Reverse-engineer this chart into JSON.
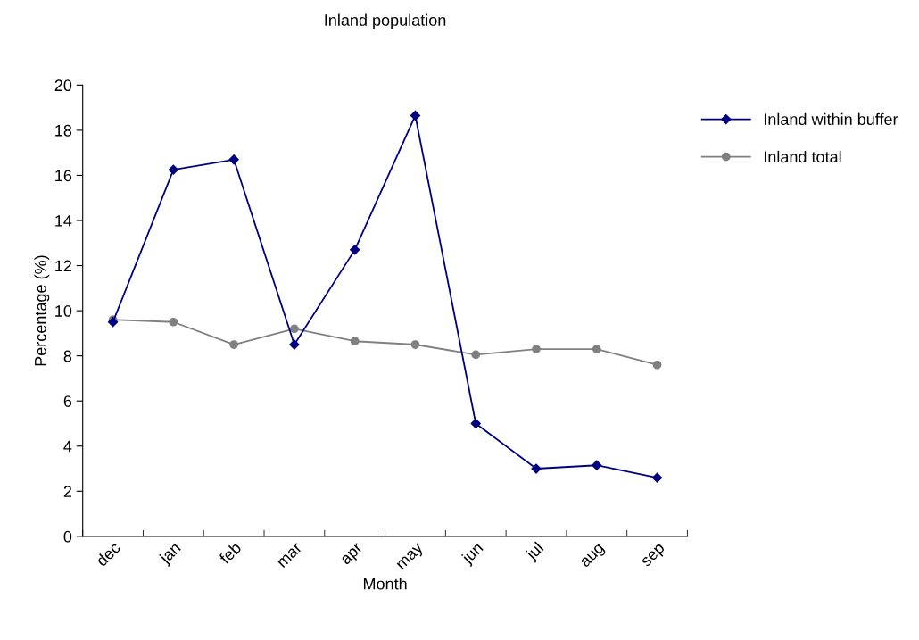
{
  "chart_data": {
    "type": "line",
    "title": "Inland population",
    "xlabel": "Month",
    "ylabel": "Percentage (%)",
    "categories": [
      "dec",
      "jan",
      "feb",
      "mar",
      "apr",
      "may",
      "jun",
      "jul",
      "aug",
      "sep"
    ],
    "series": [
      {
        "name": "Inland within buffer",
        "color": "#000080",
        "marker": "diamond",
        "values": [
          9.5,
          16.25,
          16.7,
          8.5,
          12.7,
          18.65,
          5.0,
          3.0,
          3.15,
          2.6
        ]
      },
      {
        "name": "Inland total",
        "color": "#808080",
        "marker": "circle",
        "values": [
          9.6,
          9.5,
          8.5,
          9.2,
          8.65,
          8.5,
          8.05,
          8.3,
          8.3,
          7.6
        ]
      }
    ],
    "ylim": [
      0,
      20
    ],
    "yticks": [
      0,
      2,
      4,
      6,
      8,
      10,
      12,
      14,
      16,
      18,
      20
    ],
    "grid": false,
    "legend": "right",
    "line_style": "solid"
  }
}
